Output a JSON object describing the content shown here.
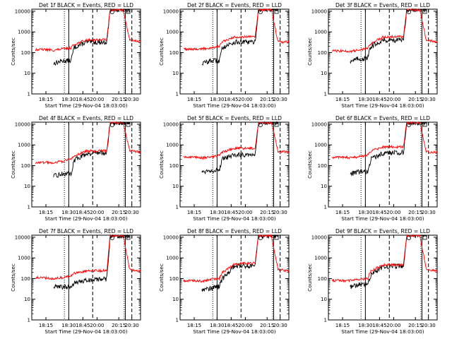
{
  "figure": {
    "panel_titles": [
      "Det 1f BLACK = Events, RED = LLD",
      "Det 2f BLACK = Events, RED = LLD",
      "Det 3f BLACK = Events, RED = LLD",
      "Det 4f BLACK = Events, RED = LLD",
      "Det 5f BLACK = Events, RED = LLD",
      "Det 6f BLACK = Events, RED = LLD",
      "Det 7f BLACK = Events, RED = LLD",
      "Det 8f BLACK = Events, RED = LLD",
      "Det 9f BLACK = Events, RED = LLD"
    ],
    "xlabel": "Start Time (29-Nov-04 18:03:00)",
    "ylabel": "Counts/sec",
    "x_tick_labels": [
      "18:15",
      "18:30",
      "18:45",
      "20:00",
      "20:15",
      "20:30"
    ],
    "y_tick_labels": [
      "1",
      "10",
      "100",
      "1000",
      "10000"
    ],
    "colors": {
      "events": "#000000",
      "lld": "#ff0000",
      "axes": "#000000"
    }
  },
  "chart_data": [
    {
      "type": "line",
      "title": "Det 1f BLACK = Events, RED = LLD",
      "xlabel": "Start Time (29-Nov-04 18:03:00)",
      "ylabel": "Counts/sec",
      "y_scale": "log",
      "ylim": [
        1,
        12000
      ],
      "x_ticks": [
        "18:15",
        "18:30",
        "18:45",
        "20:00",
        "20:15",
        "20:30"
      ],
      "x": [
        0.03,
        0.12,
        0.2,
        0.28,
        0.36,
        0.39,
        0.5,
        0.6,
        0.69,
        0.72,
        0.84,
        0.9,
        1.0
      ],
      "series": [
        {
          "name": "Events",
          "color": "#000000",
          "values": [
            null,
            null,
            30,
            40,
            40,
            180,
            320,
            320,
            320,
            12000,
            12000,
            12000,
            null
          ]
        },
        {
          "name": "LLD",
          "color": "#ff0000",
          "values": [
            140,
            140,
            130,
            150,
            170,
            250,
            400,
            420,
            430,
            12000,
            12000,
            400,
            340
          ]
        }
      ]
    },
    {
      "type": "line",
      "title": "Det 2f BLACK = Events, RED = LLD",
      "xlabel": "Start Time (29-Nov-04 18:03:00)",
      "ylabel": "Counts/sec",
      "y_scale": "log",
      "ylim": [
        1,
        12000
      ],
      "x_ticks": [
        "18:15",
        "18:30",
        "18:45",
        "20:00",
        "20:15",
        "20:30"
      ],
      "x": [
        0.03,
        0.12,
        0.2,
        0.28,
        0.36,
        0.39,
        0.5,
        0.6,
        0.69,
        0.72,
        0.84,
        0.9,
        1.0
      ],
      "series": [
        {
          "name": "Events",
          "color": "#000000",
          "values": [
            null,
            null,
            30,
            40,
            40,
            180,
            320,
            320,
            320,
            12000,
            12000,
            12000,
            null
          ]
        },
        {
          "name": "LLD",
          "color": "#ff0000",
          "values": [
            150,
            150,
            150,
            170,
            200,
            330,
            560,
            580,
            560,
            12000,
            12000,
            330,
            320
          ]
        }
      ]
    },
    {
      "type": "line",
      "title": "Det 3f BLACK = Events, RED = LLD",
      "xlabel": "Start Time (29-Nov-04 18:03:00)",
      "ylabel": "Counts/sec",
      "y_scale": "log",
      "ylim": [
        1,
        12000
      ],
      "x_ticks": [
        "18:15",
        "18:30",
        "18:45",
        "20:00",
        "20:15",
        "20:30"
      ],
      "x": [
        0.03,
        0.12,
        0.2,
        0.28,
        0.36,
        0.39,
        0.5,
        0.6,
        0.69,
        0.72,
        0.84,
        0.9,
        1.0
      ],
      "series": [
        {
          "name": "Events",
          "color": "#000000",
          "values": [
            null,
            null,
            40,
            50,
            50,
            200,
            400,
            400,
            400,
            12000,
            12000,
            12000,
            null
          ]
        },
        {
          "name": "LLD",
          "color": "#ff0000",
          "values": [
            120,
            120,
            115,
            130,
            160,
            280,
            560,
            600,
            580,
            12000,
            12000,
            400,
            330
          ]
        }
      ]
    },
    {
      "type": "line",
      "title": "Det 4f BLACK = Events, RED = LLD",
      "xlabel": "Start Time (29-Nov-04 18:03:00)",
      "ylabel": "Counts/sec",
      "y_scale": "log",
      "ylim": [
        1,
        12000
      ],
      "x_ticks": [
        "18:15",
        "18:30",
        "18:45",
        "20:00",
        "20:15",
        "20:30"
      ],
      "x": [
        0.03,
        0.12,
        0.2,
        0.28,
        0.36,
        0.39,
        0.5,
        0.6,
        0.69,
        0.72,
        0.84,
        0.9,
        1.0
      ],
      "series": [
        {
          "name": "Events",
          "color": "#000000",
          "values": [
            null,
            null,
            30,
            40,
            40,
            180,
            380,
            420,
            430,
            12000,
            12000,
            12000,
            null
          ]
        },
        {
          "name": "LLD",
          "color": "#ff0000",
          "values": [
            140,
            140,
            140,
            160,
            200,
            300,
            500,
            520,
            520,
            12000,
            12000,
            500,
            450
          ]
        }
      ]
    },
    {
      "type": "line",
      "title": "Det 5f BLACK = Events, RED = LLD",
      "xlabel": "Start Time (29-Nov-04 18:03:00)",
      "ylabel": "Counts/sec",
      "y_scale": "log",
      "ylim": [
        1,
        12000
      ],
      "x_ticks": [
        "18:15",
        "18:30",
        "18:45",
        "20:00",
        "20:15",
        "20:30"
      ],
      "x": [
        0.03,
        0.12,
        0.2,
        0.28,
        0.36,
        0.39,
        0.5,
        0.6,
        0.69,
        0.72,
        0.84,
        0.9,
        1.0
      ],
      "series": [
        {
          "name": "Events",
          "color": "#000000",
          "values": [
            null,
            null,
            50,
            60,
            60,
            200,
            320,
            350,
            350,
            12000,
            12000,
            12000,
            null
          ]
        },
        {
          "name": "LLD",
          "color": "#ff0000",
          "values": [
            250,
            250,
            240,
            260,
            300,
            450,
            680,
            700,
            680,
            12000,
            12000,
            500,
            450
          ]
        }
      ]
    },
    {
      "type": "line",
      "title": "Det 6f BLACK = Events, RED = LLD",
      "xlabel": "Start Time (29-Nov-04 18:03:00)",
      "ylabel": "Counts/sec",
      "y_scale": "log",
      "ylim": [
        1,
        12000
      ],
      "x_ticks": [
        "18:15",
        "18:30",
        "18:45",
        "20:00",
        "20:15",
        "20:30"
      ],
      "x": [
        0.03,
        0.12,
        0.2,
        0.28,
        0.36,
        0.39,
        0.5,
        0.6,
        0.69,
        0.72,
        0.84,
        0.9,
        1.0
      ],
      "series": [
        {
          "name": "Events",
          "color": "#000000",
          "values": [
            null,
            null,
            40,
            50,
            50,
            200,
            400,
            420,
            430,
            12000,
            12000,
            12000,
            null
          ]
        },
        {
          "name": "LLD",
          "color": "#ff0000",
          "values": [
            250,
            250,
            240,
            270,
            320,
            500,
            780,
            800,
            800,
            12000,
            12000,
            450,
            420
          ]
        }
      ]
    },
    {
      "type": "line",
      "title": "Det 7f BLACK = Events, RED = LLD",
      "xlabel": "Start Time (29-Nov-04 18:03:00)",
      "ylabel": "Counts/sec",
      "y_scale": "log",
      "ylim": [
        1,
        12000
      ],
      "x_ticks": [
        "18:15",
        "18:30",
        "18:45",
        "20:00",
        "20:15",
        "20:30"
      ],
      "x": [
        0.03,
        0.12,
        0.2,
        0.28,
        0.36,
        0.39,
        0.5,
        0.6,
        0.69,
        0.72,
        0.84,
        0.9,
        1.0
      ],
      "series": [
        {
          "name": "Events",
          "color": "#000000",
          "values": [
            null,
            null,
            40,
            40,
            40,
            60,
            80,
            90,
            95,
            12000,
            12000,
            12000,
            null
          ]
        },
        {
          "name": "LLD",
          "color": "#ff0000",
          "values": [
            110,
            110,
            100,
            110,
            130,
            180,
            230,
            240,
            240,
            12000,
            12000,
            280,
            220
          ]
        }
      ]
    },
    {
      "type": "line",
      "title": "Det 8f BLACK = Events, RED = LLD",
      "xlabel": "Start Time (29-Nov-04 18:03:00)",
      "ylabel": "Counts/sec",
      "y_scale": "log",
      "ylim": [
        1,
        12000
      ],
      "x_ticks": [
        "18:15",
        "18:30",
        "18:45",
        "20:00",
        "20:15",
        "20:30"
      ],
      "x": [
        0.03,
        0.12,
        0.2,
        0.28,
        0.36,
        0.39,
        0.5,
        0.6,
        0.69,
        0.72,
        0.84,
        0.9,
        1.0
      ],
      "series": [
        {
          "name": "Events",
          "color": "#000000",
          "values": [
            null,
            null,
            30,
            35,
            40,
            100,
            400,
            420,
            430,
            12000,
            12000,
            12000,
            null
          ]
        },
        {
          "name": "LLD",
          "color": "#ff0000",
          "values": [
            80,
            80,
            75,
            90,
            100,
            200,
            500,
            550,
            560,
            12000,
            12000,
            280,
            240
          ]
        }
      ]
    },
    {
      "type": "line",
      "title": "Det 9f BLACK = Events, RED = LLD",
      "xlabel": "Start Time (29-Nov-04 18:03:00)",
      "ylabel": "Counts/sec",
      "y_scale": "log",
      "ylim": [
        1,
        12000
      ],
      "x_ticks": [
        "18:15",
        "18:30",
        "18:45",
        "20:00",
        "20:15",
        "20:30"
      ],
      "x": [
        0.03,
        0.12,
        0.2,
        0.28,
        0.36,
        0.39,
        0.5,
        0.6,
        0.69,
        0.72,
        0.84,
        0.9,
        1.0
      ],
      "series": [
        {
          "name": "Events",
          "color": "#000000",
          "values": [
            null,
            null,
            40,
            50,
            50,
            150,
            380,
            400,
            400,
            12000,
            12000,
            12000,
            null
          ]
        },
        {
          "name": "LLD",
          "color": "#ff0000",
          "values": [
            80,
            80,
            80,
            90,
            100,
            230,
            450,
            460,
            460,
            12000,
            12000,
            280,
            230
          ]
        }
      ]
    }
  ]
}
